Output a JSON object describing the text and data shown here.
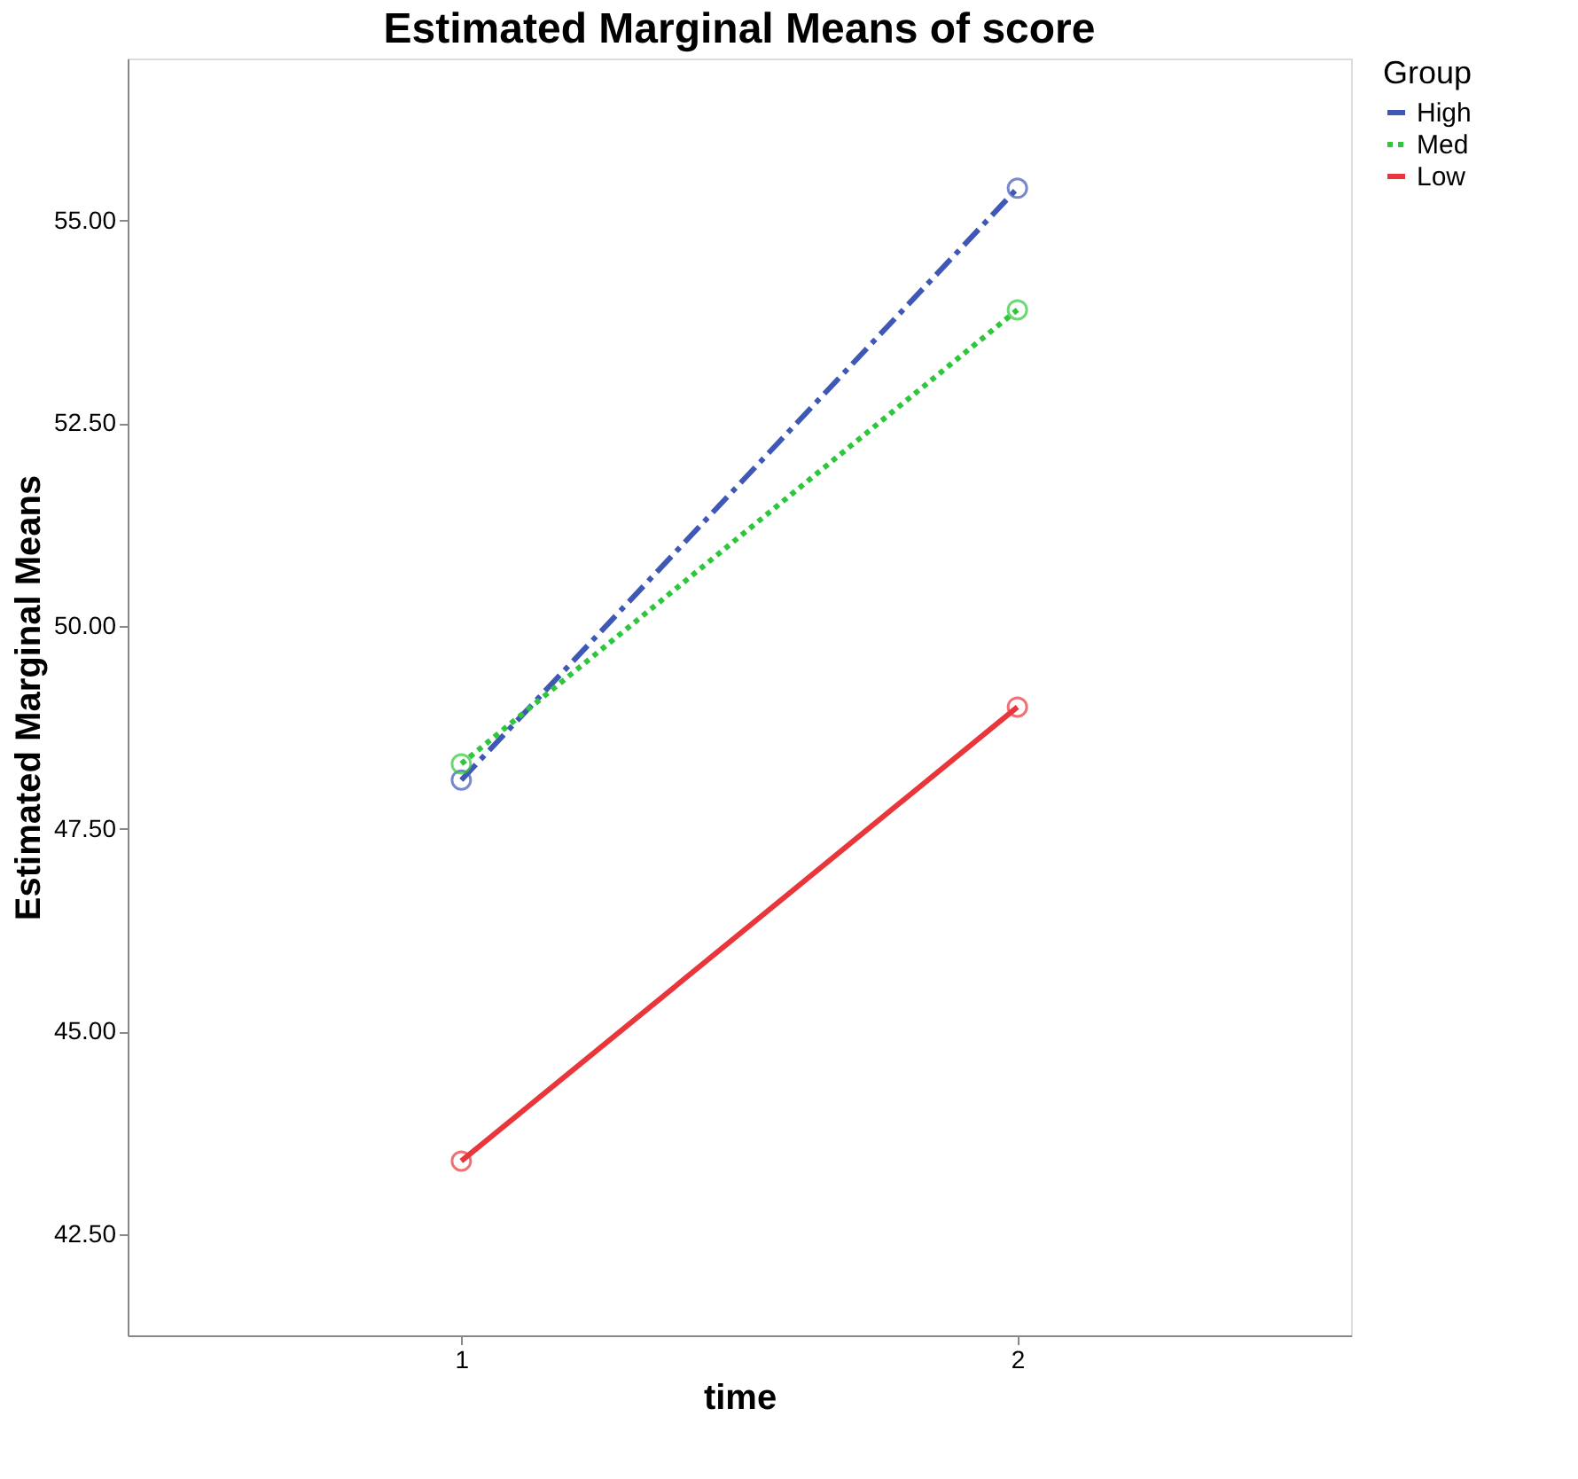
{
  "chart_data": {
    "type": "line",
    "title": "Estimated Marginal Means of score",
    "xlabel": "time",
    "ylabel": "Estimated Marginal Means",
    "legend_title": "Group",
    "categories": [
      "1",
      "2"
    ],
    "series": [
      {
        "name": "High",
        "color": "#3f57b5",
        "line_style": "dashdot",
        "values": [
          48.1,
          55.4
        ]
      },
      {
        "name": "Med",
        "color": "#2ec73c",
        "line_style": "dotted",
        "values": [
          48.3,
          53.9
        ]
      },
      {
        "name": "Low",
        "color": "#e8363b",
        "line_style": "solid",
        "values": [
          43.4,
          49.0
        ]
      }
    ],
    "ylim": [
      41.25,
      57.0
    ],
    "yticks": [
      {
        "value": 42.5,
        "label": "42.50"
      },
      {
        "value": 45,
        "label": "45.00"
      },
      {
        "value": 47.5,
        "label": "47.50"
      },
      {
        "value": 50,
        "label": "50.00"
      },
      {
        "value": 52.5,
        "label": "52.50"
      },
      {
        "value": 55,
        "label": "55.00"
      }
    ],
    "marker": "circle",
    "grid": false,
    "legend": "top right"
  }
}
